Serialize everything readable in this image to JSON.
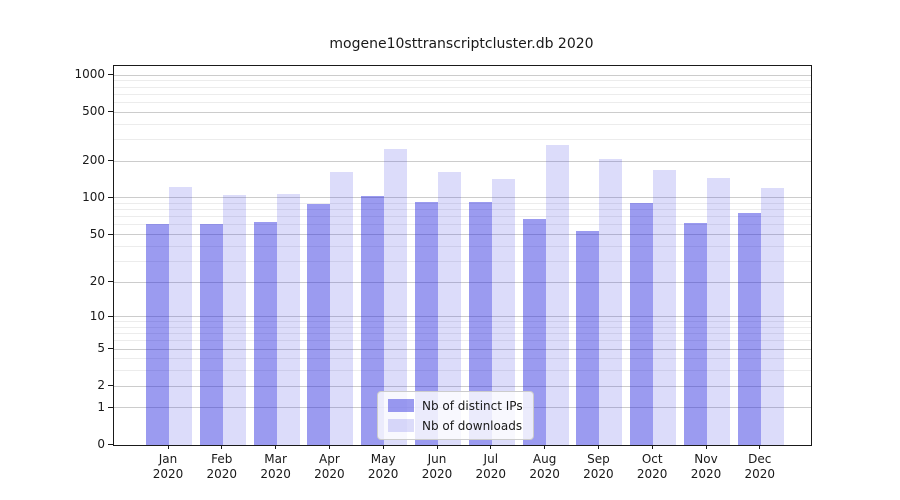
{
  "chart_data": {
    "type": "bar",
    "title": "mogene10sttranscriptcluster.db 2020",
    "year_label": "2020",
    "categories": [
      "Jan",
      "Feb",
      "Mar",
      "Apr",
      "May",
      "Jun",
      "Jul",
      "Aug",
      "Sep",
      "Oct",
      "Nov",
      "Dec"
    ],
    "series": [
      {
        "key": "distinct-ips",
        "name": "Nb of distinct IPs",
        "color": "rgba(33,33,222,0.45)",
        "values": [
          61,
          61,
          64,
          90,
          104,
          93,
          93,
          67,
          54,
          91,
          62,
          75
        ]
      },
      {
        "key": "downloads",
        "name": "Nb of downloads",
        "color": "rgba(61,61,227,0.18)",
        "values": [
          122,
          106,
          108,
          162,
          250,
          163,
          144,
          272,
          207,
          168,
          146,
          120
        ]
      }
    ],
    "yscale": "symlog (log1p)",
    "yticks": [
      0,
      1,
      2,
      5,
      10,
      20,
      50,
      100,
      200,
      500,
      1000
    ],
    "ylim": [
      0,
      1188
    ],
    "xlabel": "",
    "ylabel": "",
    "grid": "both",
    "legend_position": "lower center",
    "colors": {
      "grid_major": "#cccccc",
      "grid_minor": "#ececec",
      "spine": "#1a1a1a",
      "text": "#1a1a1a"
    }
  }
}
